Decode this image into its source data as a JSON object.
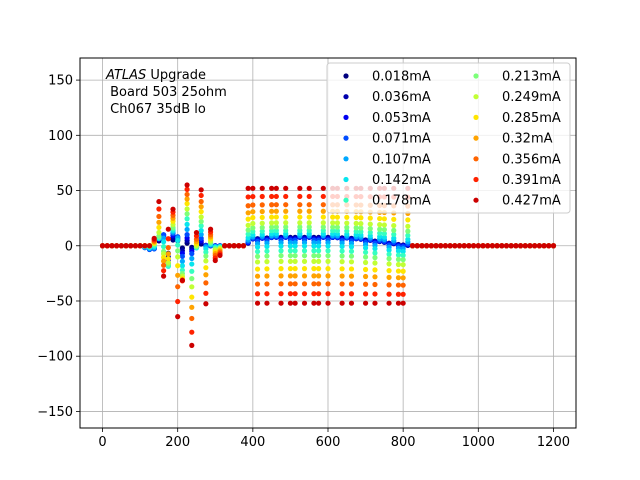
{
  "chart_data": {
    "type": "scatter",
    "annotation": {
      "line1_italic": "ATLAS",
      "line1_rest": " Upgrade",
      "line2": " Board 503 25ohm",
      "line3": " Ch067 35dB lo"
    },
    "xlim": [
      -60,
      1260
    ],
    "ylim": [
      -165,
      170
    ],
    "x_ticks": [
      0,
      200,
      400,
      600,
      800,
      1000,
      1200
    ],
    "y_ticks": [
      -150,
      -100,
      -50,
      0,
      50,
      100,
      150
    ],
    "x_tick_labels": [
      "0",
      "200",
      "400",
      "600",
      "800",
      "1000",
      "1200"
    ],
    "y_tick_labels": [
      "−150",
      "−100",
      "−50",
      "0",
      "50",
      "100",
      "150"
    ],
    "grid": true,
    "legend": {
      "placement": "upper right",
      "columns": 2
    },
    "x_sampling": {
      "start": 0,
      "step": 12.5,
      "count": 97
    },
    "pulse_model": [
      [
        [
          150,
          -36
        ],
        [
          160,
          18
        ],
        [
          175,
          -70
        ],
        [
          195,
          95
        ],
        [
          210,
          -90
        ],
        [
          225,
          60
        ],
        [
          240,
          -55
        ],
        [
          262,
          40
        ],
        [
          278,
          0
        ]
      ],
      [
        [
          50,
          0
        ],
        [
          100,
          0
        ],
        [
          135,
          -5
        ],
        [
          160,
          14
        ],
        [
          175,
          -6
        ],
        [
          190,
          8
        ],
        [
          215,
          0
        ],
        [
          265,
          0
        ],
        [
          300,
          0
        ],
        [
          330,
          0
        ]
      ],
      [
        [
          135,
          0
        ],
        [
          150,
          40
        ],
        [
          165,
          -45
        ],
        [
          180,
          150
        ],
        [
          195,
          -150
        ],
        [
          215,
          60
        ],
        [
          235,
          -70
        ],
        [
          255,
          55
        ],
        [
          275,
          -60
        ],
        [
          290,
          30
        ],
        [
          305,
          -35
        ],
        [
          315,
          0
        ]
      ],
      [
        [
          380,
          0
        ],
        [
          400,
          8
        ],
        [
          460,
          10
        ],
        [
          520,
          10
        ],
        [
          600,
          10
        ],
        [
          660,
          9
        ],
        [
          720,
          6
        ],
        [
          780,
          2
        ],
        [
          820,
          0
        ]
      ]
    ],
    "series": [
      {
        "name": "0.018mA",
        "color": "#00007f",
        "scale": 0.04
      },
      {
        "name": "0.036mA",
        "color": "#0000ad",
        "scale": 0.08
      },
      {
        "name": "0.053mA",
        "color": "#0000f1",
        "scale": 0.12
      },
      {
        "name": "0.071mA",
        "color": "#004cff",
        "scale": 0.17
      },
      {
        "name": "0.107mA",
        "color": "#00a8ff",
        "scale": 0.25
      },
      {
        "name": "0.142mA",
        "color": "#08e5ee",
        "scale": 0.33
      },
      {
        "name": "0.178mA",
        "color": "#35ffc1",
        "scale": 0.42
      },
      {
        "name": "0.213mA",
        "color": "#7cff79",
        "scale": 0.5
      },
      {
        "name": "0.249mA",
        "color": "#c1ff35",
        "scale": 0.58
      },
      {
        "name": "0.285mA",
        "color": "#ffe500",
        "scale": 0.67
      },
      {
        "name": "0.32mA",
        "color": "#ffa300",
        "scale": 0.75
      },
      {
        "name": "0.356mA",
        "color": "#ff6400",
        "scale": 0.83
      },
      {
        "name": "0.391mA",
        "color": "#ff2200",
        "scale": 0.92
      },
      {
        "name": "0.427mA",
        "color": "#cc0000",
        "scale": 1.0
      }
    ]
  }
}
